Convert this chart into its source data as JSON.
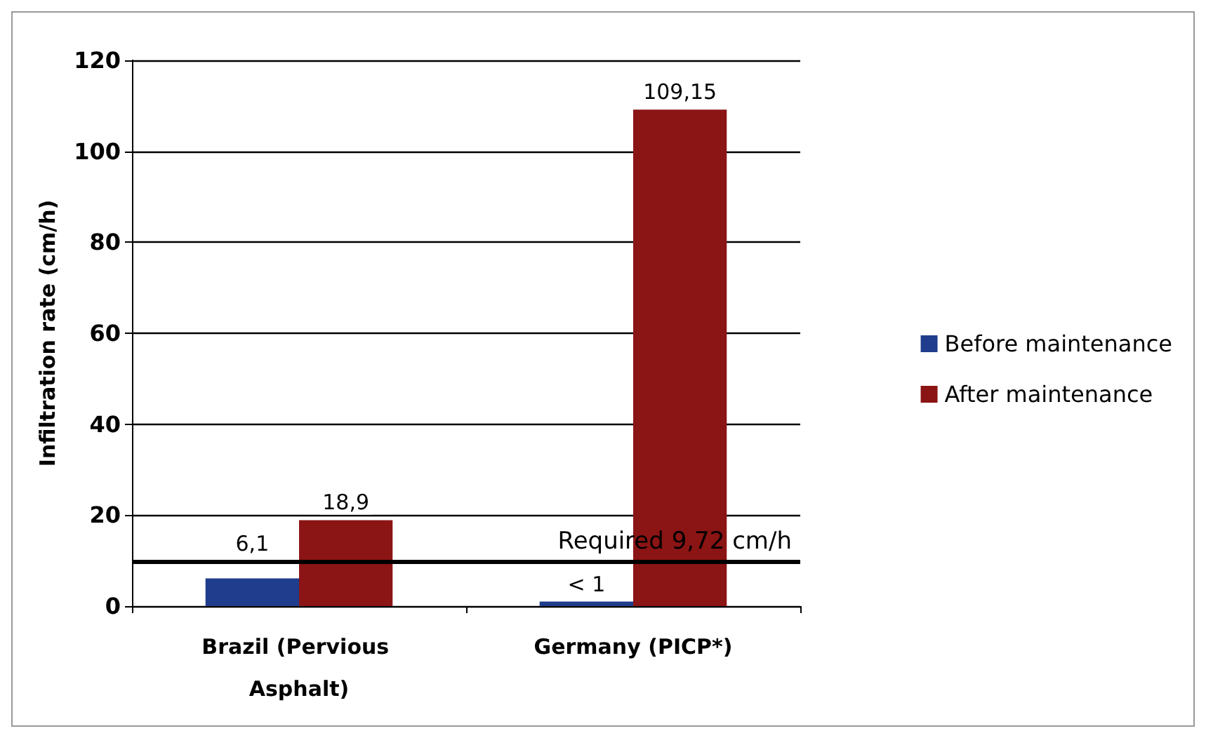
{
  "chart_data": {
    "type": "bar",
    "ylabel": "Infiltration rate (cm/h)",
    "categories": [
      "Brazil (Pervious Asphalt)",
      "Germany (PICP*)"
    ],
    "series": [
      {
        "name": "Before maintenance",
        "color": "#1f3d8c",
        "values": [
          6.1,
          1
        ],
        "value_labels": [
          "6,1",
          "< 1"
        ]
      },
      {
        "name": "After maintenance",
        "color": "#8b1414",
        "values": [
          18.9,
          109.15
        ],
        "value_labels": [
          "18,9",
          "109,15"
        ]
      }
    ],
    "ylim": [
      0,
      120
    ],
    "yticks": [
      0,
      20,
      40,
      60,
      80,
      100,
      120
    ],
    "grid": "y",
    "legend": "right",
    "ref_lines": [
      {
        "axis": "y",
        "value": 9.72,
        "label": "Required 9,72 cm/h",
        "color": "#000000"
      }
    ]
  }
}
